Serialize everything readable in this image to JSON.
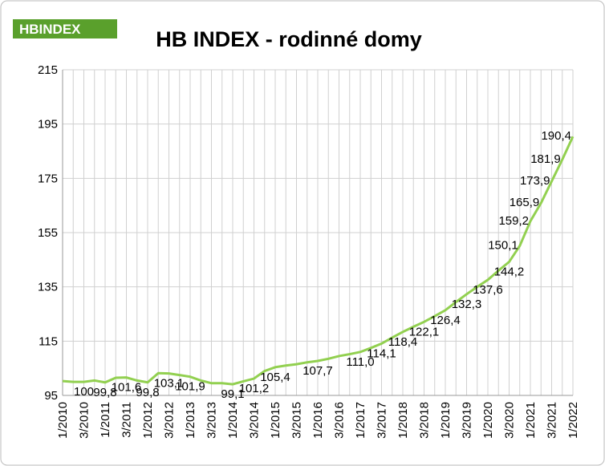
{
  "logo": "HBINDEX",
  "chart_data": {
    "type": "line",
    "title": "HB INDEX - rodinné domy",
    "categories": [
      "1/2010",
      null,
      "3/2010",
      null,
      "1/2011",
      null,
      "3/2011",
      null,
      "1/2012",
      null,
      "3/2012",
      null,
      "1/2013",
      null,
      "3/2013",
      null,
      "1/2014",
      null,
      "3/2014",
      null,
      "1/2015",
      null,
      "3/2015",
      null,
      "1/2016",
      null,
      "3/2016",
      null,
      "1/2017",
      null,
      "3/2017",
      null,
      "1/2018",
      null,
      "3/2018",
      null,
      "1/2019",
      null,
      "3/2019",
      null,
      "1/2020",
      null,
      "3/2020",
      null,
      "1/2021",
      null,
      "3/2021",
      null,
      "1/2022"
    ],
    "series": [
      {
        "name": "HB INDEX",
        "color": "#92d050",
        "values": [
          100.3,
          100.0,
          100,
          100.5,
          99.8,
          101.5,
          101.6,
          100.5,
          99.8,
          103.2,
          103.1,
          102.5,
          101.9,
          100.5,
          99.5,
          99.5,
          99.1,
          100.2,
          101.2,
          104,
          105.4,
          106,
          106.5,
          107.2,
          107.7,
          108.5,
          109.5,
          110.2,
          111.0,
          112.5,
          114.1,
          116.3,
          118.4,
          120.3,
          122.1,
          124.2,
          126.4,
          129.4,
          132.3,
          135,
          137.6,
          141,
          144.2,
          150.1,
          159.2,
          165.9,
          173.9,
          181.9,
          190.4
        ],
        "value_labels": [
          null,
          null,
          "100",
          null,
          "99,8",
          null,
          "101,6",
          null,
          "99,8",
          null,
          "103,1",
          null,
          "101,9",
          null,
          null,
          null,
          "99,1",
          null,
          "101,2",
          null,
          "105,4",
          null,
          null,
          null,
          "107,7",
          null,
          null,
          null,
          "111,0",
          null,
          "114,1",
          null,
          "118,4",
          null,
          "122,1",
          null,
          "126,4",
          null,
          "132,3",
          null,
          "137,6",
          null,
          "144,2",
          "150,1",
          "159,2",
          "165,9",
          "173,9",
          "181,9",
          "190,4"
        ]
      }
    ],
    "ylim": [
      95,
      215
    ],
    "yticks": [
      95,
      115,
      135,
      155,
      175,
      195,
      215
    ],
    "grid": true
  }
}
